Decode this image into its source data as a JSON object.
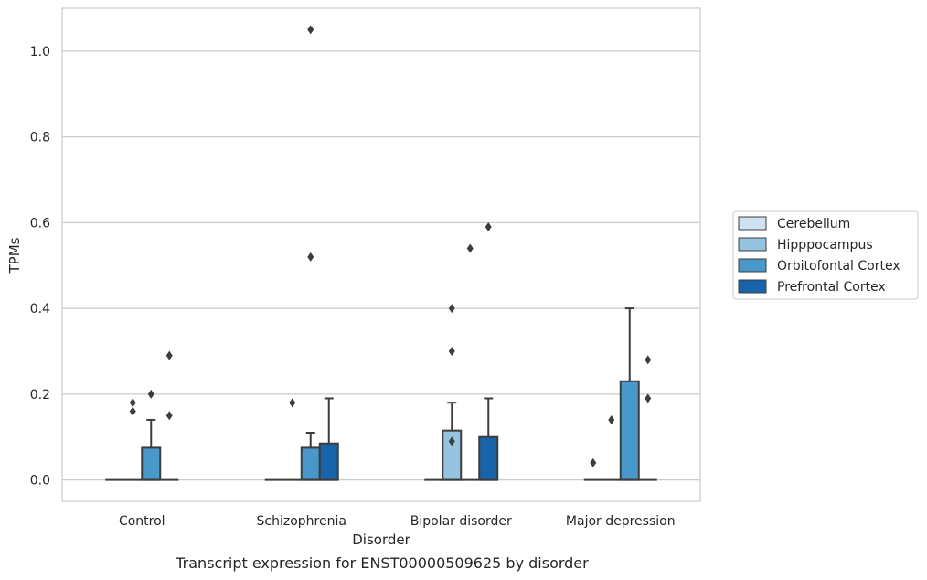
{
  "caption": "Transcript expression for ENST00000509625 by disorder",
  "chart_data": {
    "type": "box",
    "title": "",
    "xlabel": "Disorder",
    "ylabel": "TPMs",
    "ylim": [
      -0.05,
      1.1
    ],
    "yticks": [
      0.0,
      0.2,
      0.4,
      0.6,
      0.8,
      1.0
    ],
    "ytick_labels": [
      "0.0",
      "0.2",
      "0.4",
      "0.6",
      "0.8",
      "1.0"
    ],
    "grid": "horizontal",
    "legend_position": "right",
    "categories": [
      "Control",
      "Schizophrenia",
      "Bipolar disorder",
      "Major depression"
    ],
    "series": [
      {
        "name": "Cerebellum",
        "color": "#d0e1f2",
        "boxes": [
          {
            "q1": 0,
            "median": 0,
            "q3": 0,
            "whisker_low": 0,
            "whisker_high": 0,
            "outliers": []
          },
          {
            "q1": 0,
            "median": 0,
            "q3": 0,
            "whisker_low": 0,
            "whisker_high": 0,
            "outliers": []
          },
          {
            "q1": 0,
            "median": 0,
            "q3": 0,
            "whisker_low": 0,
            "whisker_high": 0,
            "outliers": []
          },
          {
            "q1": 0,
            "median": 0,
            "q3": 0,
            "whisker_low": 0,
            "whisker_high": 0,
            "outliers": [
              0.04
            ]
          }
        ]
      },
      {
        "name": "Hipppocampus",
        "color": "#94c4df",
        "boxes": [
          {
            "q1": 0,
            "median": 0,
            "q3": 0,
            "whisker_low": 0,
            "whisker_high": 0,
            "outliers": [
              0.18,
              0.16
            ]
          },
          {
            "q1": 0,
            "median": 0,
            "q3": 0,
            "whisker_low": 0,
            "whisker_high": 0,
            "outliers": [
              0.18
            ]
          },
          {
            "q1": 0,
            "median": 0,
            "q3": 0.115,
            "whisker_low": 0,
            "whisker_high": 0.18,
            "outliers": [
              0.4,
              0.3,
              0.09
            ]
          },
          {
            "q1": 0,
            "median": 0,
            "q3": 0,
            "whisker_low": 0,
            "whisker_high": 0,
            "outliers": [
              0.14
            ]
          }
        ]
      },
      {
        "name": "Orbitofontal Cortex",
        "color": "#4a98c9",
        "boxes": [
          {
            "q1": 0,
            "median": 0,
            "q3": 0.075,
            "whisker_low": 0,
            "whisker_high": 0.14,
            "outliers": [
              0.2
            ]
          },
          {
            "q1": 0,
            "median": 0,
            "q3": 0.075,
            "whisker_low": 0,
            "whisker_high": 0.11,
            "outliers": [
              1.05,
              0.52
            ]
          },
          {
            "q1": 0,
            "median": 0,
            "q3": 0,
            "whisker_low": 0,
            "whisker_high": 0,
            "outliers": [
              0.54
            ]
          },
          {
            "q1": 0,
            "median": 0,
            "q3": 0.23,
            "whisker_low": 0,
            "whisker_high": 0.4,
            "outliers": []
          }
        ]
      },
      {
        "name": "Prefrontal Cortex",
        "color": "#1764ab",
        "boxes": [
          {
            "q1": 0,
            "median": 0,
            "q3": 0,
            "whisker_low": 0,
            "whisker_high": 0,
            "outliers": [
              0.29,
              0.15
            ]
          },
          {
            "q1": 0,
            "median": 0,
            "q3": 0.085,
            "whisker_low": 0,
            "whisker_high": 0.19,
            "outliers": []
          },
          {
            "q1": 0,
            "median": 0,
            "q3": 0.1,
            "whisker_low": 0,
            "whisker_high": 0.19,
            "outliers": [
              0.59
            ]
          },
          {
            "q1": 0,
            "median": 0,
            "q3": 0,
            "whisker_low": 0,
            "whisker_high": 0,
            "outliers": [
              0.28,
              0.19
            ]
          }
        ]
      }
    ]
  }
}
